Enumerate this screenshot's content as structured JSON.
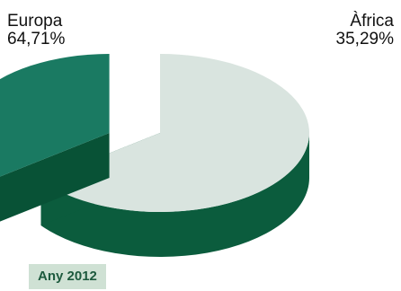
{
  "chart_data": {
    "type": "pie",
    "style": "3d-exploded",
    "categories": [
      "Europa",
      "Àfrica"
    ],
    "values": [
      64.71,
      35.29
    ],
    "value_labels": [
      "64,71%",
      "35,29%"
    ],
    "colors": {
      "Europa": {
        "top": "#d9e4df",
        "side": "#0b5c3d"
      },
      "Àfrica": {
        "top": "#1a7a62",
        "side": "#085236"
      }
    },
    "title": "",
    "legend": "none",
    "caption": "Any 2012"
  }
}
